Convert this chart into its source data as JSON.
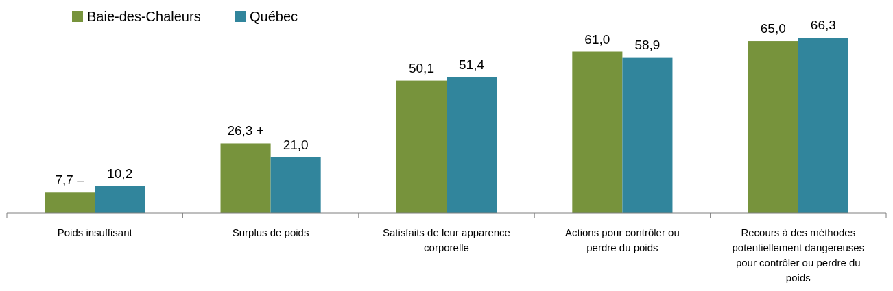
{
  "chart_data": {
    "type": "bar",
    "categories": [
      "Poids insuffisant",
      "Surplus de poids",
      "Satisfaits de leur apparence corporelle",
      "Actions pour contrôler ou perdre du poids",
      "Recours à des méthodes potentiellement dangereuses pour contrôler ou perdre du poids"
    ],
    "series": [
      {
        "name": "Baie-des-Chaleurs",
        "color": "#77933c",
        "values": [
          7.7,
          26.3,
          50.1,
          61.0,
          65.0
        ],
        "value_labels": [
          "7,7 –",
          "26,3 +",
          "50,1",
          "61,0",
          "65,0"
        ]
      },
      {
        "name": "Québec",
        "color": "#31859c",
        "values": [
          10.2,
          21.0,
          51.4,
          58.9,
          66.3
        ],
        "value_labels": [
          "10,2",
          "21,0",
          "51,4",
          "58,9",
          "66,3"
        ]
      }
    ],
    "tick_labels": "x",
    "legend": "top left"
  }
}
